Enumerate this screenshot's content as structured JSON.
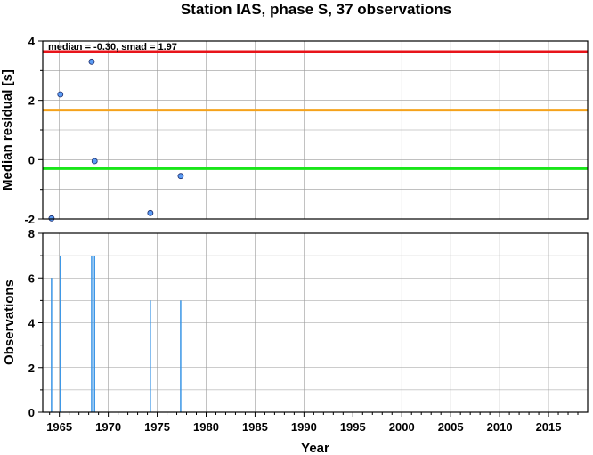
{
  "chart_data": [
    {
      "type": "scatter",
      "title": "Station IAS, phase S, 37 observations",
      "ylabel": "Median residual [s]",
      "xlabel": "",
      "annotation": "median = -0.30, smad = 1.97",
      "xlim": [
        1963.3,
        2019
      ],
      "ylim": [
        -2,
        4
      ],
      "yticks": [
        -2,
        0,
        2,
        4
      ],
      "grid": true,
      "points": [
        {
          "x": 1964.2,
          "y": -1.98
        },
        {
          "x": 1965.1,
          "y": 2.2
        },
        {
          "x": 1968.3,
          "y": 3.3
        },
        {
          "x": 1968.6,
          "y": -0.05
        },
        {
          "x": 1974.3,
          "y": -1.8
        },
        {
          "x": 1977.4,
          "y": -0.55
        }
      ],
      "hlines": [
        {
          "y": 3.64,
          "color": "#e8141a"
        },
        {
          "y": 1.67,
          "color": "#f5a21b"
        },
        {
          "y": -0.3,
          "color": "#19e619"
        }
      ],
      "point_color": "#5b9cf5"
    },
    {
      "type": "bar",
      "title": "",
      "ylabel": "Observations",
      "xlabel": "Year",
      "xlim": [
        1963.3,
        2019
      ],
      "ylim": [
        0,
        8
      ],
      "yticks": [
        0,
        2,
        4,
        6,
        8
      ],
      "xticks": [
        1965,
        1970,
        1975,
        1980,
        1985,
        1990,
        1995,
        2000,
        2005,
        2010,
        2015
      ],
      "grid": true,
      "bars": [
        {
          "x": 1964.2,
          "y": 6
        },
        {
          "x": 1965.1,
          "y": 7
        },
        {
          "x": 1968.3,
          "y": 7
        },
        {
          "x": 1968.6,
          "y": 7
        },
        {
          "x": 1974.3,
          "y": 5
        },
        {
          "x": 1977.4,
          "y": 5
        }
      ],
      "bar_color": "#3a95e6"
    }
  ]
}
